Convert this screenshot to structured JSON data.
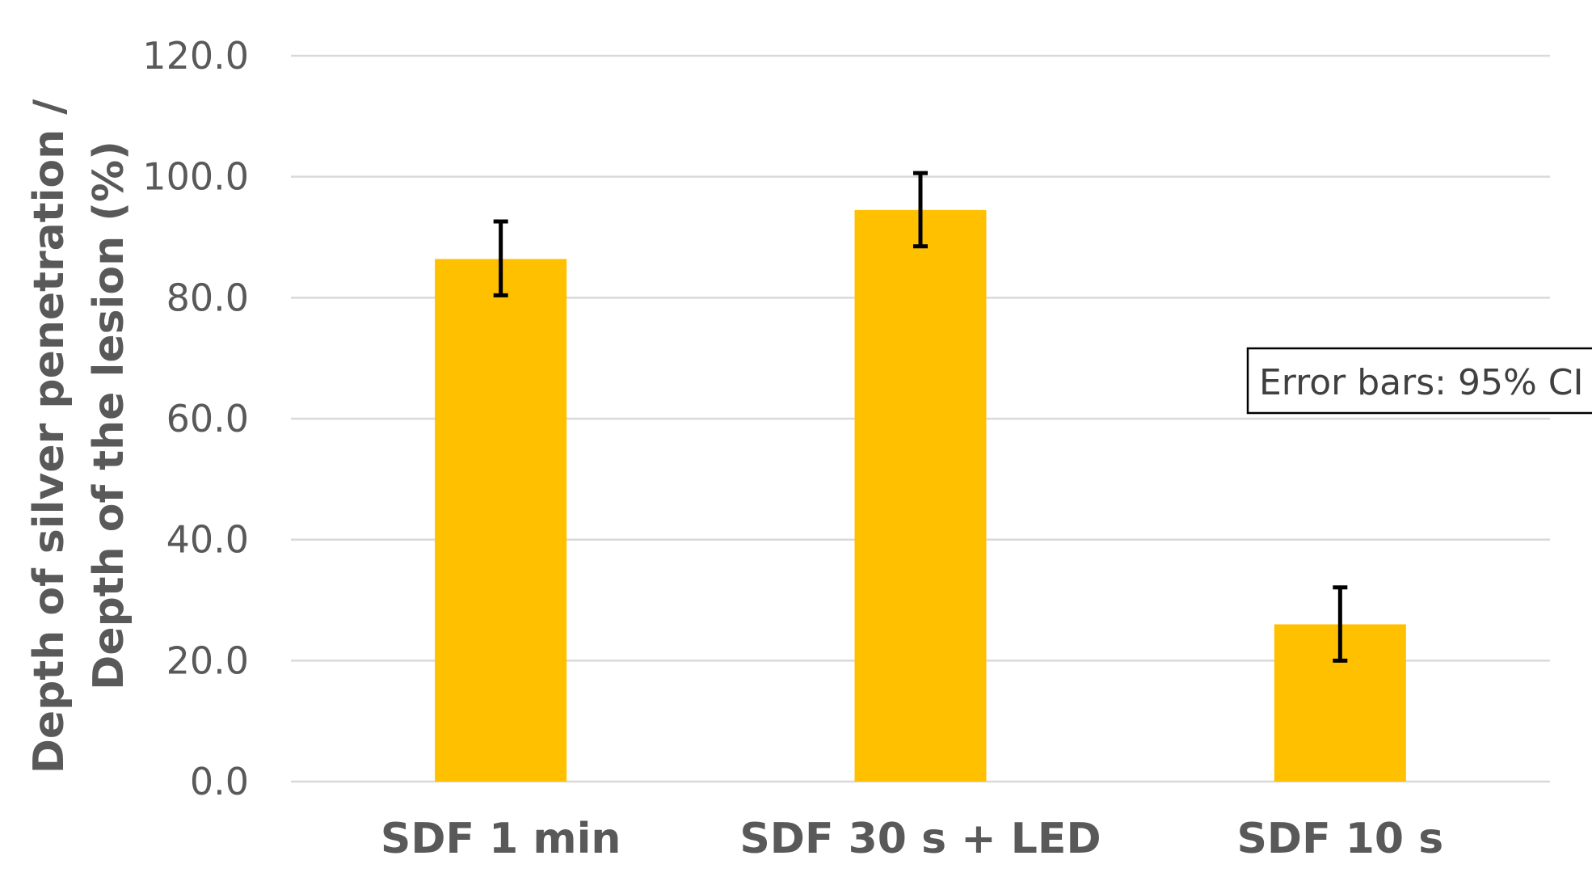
{
  "chart_data": {
    "type": "bar",
    "title": "",
    "categories": [
      "SDF 1 min",
      "SDF 30 s + LED",
      "SDF 10 s"
    ],
    "values": [
      86.4,
      94.5,
      26.0
    ],
    "error_bars": {
      "lower": [
        80.4,
        88.5,
        20.0
      ],
      "upper": [
        92.6,
        100.6,
        32.1
      ]
    },
    "ylabel_lines": [
      "Depth of silver penetration /",
      "Depth of the lesion (%)"
    ],
    "xlabel": "",
    "ylim": [
      0,
      120
    ],
    "yticks": [
      0,
      20,
      40,
      60,
      80,
      100,
      120
    ],
    "ytick_labels": [
      "0.0",
      "20.0",
      "40.0",
      "60.0",
      "80.0",
      "100.0",
      "120.0"
    ],
    "grid": true,
    "legend": "none",
    "annotation": "Error bars: 95% CI",
    "colors": {
      "bar": "#FFC000",
      "gridline": "#D9D9D9",
      "error_bar": "#000000",
      "text": "#595959"
    }
  }
}
